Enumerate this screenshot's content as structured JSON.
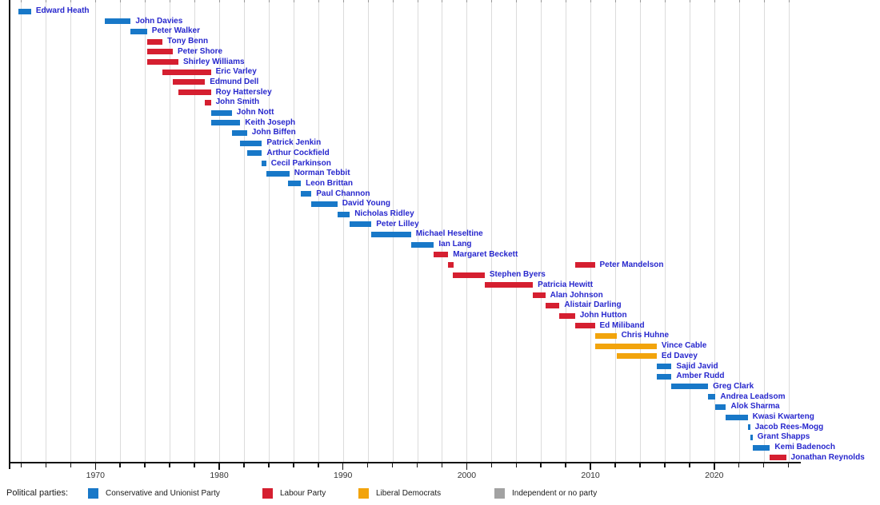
{
  "legend": {
    "title": "Political parties:",
    "items": [
      {
        "party": "con"
      },
      {
        "party": "lab"
      },
      {
        "party": "ld"
      },
      {
        "party": "ind"
      }
    ]
  },
  "parties": {
    "con": {
      "name": "Conservative and Unionist Party",
      "color": "#1878c8"
    },
    "lab": {
      "name": "Labour Party",
      "color": "#d51f30"
    },
    "ld": {
      "name": "Liberal Democrats",
      "color": "#f2a40c"
    },
    "ind": {
      "name": "Independent or no party",
      "color": "#a2a2a2"
    }
  },
  "chart_data": {
    "type": "timeline",
    "title": "",
    "label_color": "#2727cd",
    "x_axis": {
      "range": [
        1963,
        2027
      ],
      "major_ticks": [
        1970,
        1980,
        1990,
        2000,
        2010,
        2020
      ],
      "tick_labels": [
        "1970",
        "1980",
        "1990",
        "2000",
        "2010",
        "2020"
      ],
      "minor_tick_step": 2,
      "gridline_step": 2,
      "grid": true
    },
    "entries": [
      {
        "name": "Edward Heath",
        "party": "con",
        "terms": [
          [
            1963.75,
            1964.8
          ]
        ]
      },
      {
        "name": "John Davies",
        "party": "con",
        "terms": [
          [
            1970.75,
            1972.85
          ]
        ]
      },
      {
        "name": "Peter Walker",
        "party": "con",
        "terms": [
          [
            1972.85,
            1974.17
          ]
        ]
      },
      {
        "name": "Tony Benn",
        "party": "lab",
        "terms": [
          [
            1974.17,
            1975.42
          ]
        ]
      },
      {
        "name": "Peter Shore",
        "party": "lab",
        "terms": [
          [
            1974.17,
            1976.25
          ]
        ]
      },
      {
        "name": "Shirley Williams",
        "party": "lab",
        "terms": [
          [
            1974.17,
            1976.7
          ]
        ]
      },
      {
        "name": "Eric Varley",
        "party": "lab",
        "terms": [
          [
            1975.42,
            1979.33
          ]
        ]
      },
      {
        "name": "Edmund Dell",
        "party": "lab",
        "terms": [
          [
            1976.25,
            1978.85
          ]
        ]
      },
      {
        "name": "Roy Hattersley",
        "party": "lab",
        "terms": [
          [
            1976.7,
            1979.33
          ]
        ]
      },
      {
        "name": "John Smith",
        "party": "lab",
        "terms": [
          [
            1978.85,
            1979.33
          ]
        ]
      },
      {
        "name": "John Nott",
        "party": "con",
        "terms": [
          [
            1979.33,
            1981.02
          ]
        ]
      },
      {
        "name": "Keith Joseph",
        "party": "con",
        "terms": [
          [
            1979.33,
            1981.7
          ]
        ]
      },
      {
        "name": "John Biffen",
        "party": "con",
        "terms": [
          [
            1981.02,
            1982.25
          ]
        ]
      },
      {
        "name": "Patrick Jenkin",
        "party": "con",
        "terms": [
          [
            1981.7,
            1983.45
          ]
        ]
      },
      {
        "name": "Arthur Cockfield",
        "party": "con",
        "terms": [
          [
            1982.25,
            1983.45
          ]
        ]
      },
      {
        "name": "Cecil Parkinson",
        "party": "con",
        "terms": [
          [
            1983.45,
            1983.8
          ]
        ]
      },
      {
        "name": "Norman Tebbit",
        "party": "con",
        "terms": [
          [
            1983.8,
            1985.67
          ]
        ]
      },
      {
        "name": "Leon Brittan",
        "party": "con",
        "terms": [
          [
            1985.55,
            1986.6
          ]
        ]
      },
      {
        "name": "Paul Channon",
        "party": "con",
        "terms": [
          [
            1986.6,
            1987.45
          ]
        ]
      },
      {
        "name": "David Young",
        "party": "con",
        "terms": [
          [
            1987.45,
            1989.55
          ]
        ]
      },
      {
        "name": "Nicholas Ridley",
        "party": "con",
        "terms": [
          [
            1989.55,
            1990.55
          ]
        ]
      },
      {
        "name": "Peter Lilley",
        "party": "con",
        "terms": [
          [
            1990.55,
            1992.3
          ]
        ]
      },
      {
        "name": "Michael Heseltine",
        "party": "con",
        "terms": [
          [
            1992.3,
            1995.5
          ]
        ]
      },
      {
        "name": "Ian Lang",
        "party": "con",
        "terms": [
          [
            1995.5,
            1997.35
          ]
        ]
      },
      {
        "name": "Margaret Beckett",
        "party": "lab",
        "terms": [
          [
            1997.35,
            1998.5
          ]
        ]
      },
      {
        "name": "Peter Mandelson",
        "party": "lab",
        "terms": [
          [
            1998.5,
            1998.95
          ],
          [
            2008.75,
            2010.35
          ]
        ]
      },
      {
        "name": "Stephen Byers",
        "party": "lab",
        "terms": [
          [
            1998.9,
            2001.45
          ]
        ]
      },
      {
        "name": "Patricia Hewitt",
        "party": "lab",
        "terms": [
          [
            2001.45,
            2005.35
          ]
        ]
      },
      {
        "name": "Alan Johnson",
        "party": "lab",
        "terms": [
          [
            2005.35,
            2006.35
          ]
        ]
      },
      {
        "name": "Alistair Darling",
        "party": "lab",
        "terms": [
          [
            2006.35,
            2007.5
          ]
        ]
      },
      {
        "name": "John Hutton",
        "party": "lab",
        "terms": [
          [
            2007.5,
            2008.75
          ]
        ]
      },
      {
        "name": "Ed Miliband",
        "party": "lab",
        "terms": [
          [
            2008.75,
            2010.35
          ]
        ]
      },
      {
        "name": "Chris Huhne",
        "party": "ld",
        "terms": [
          [
            2010.35,
            2012.1
          ]
        ]
      },
      {
        "name": "Vince Cable",
        "party": "ld",
        "terms": [
          [
            2010.35,
            2015.35
          ]
        ]
      },
      {
        "name": "Ed Davey",
        "party": "ld",
        "terms": [
          [
            2012.1,
            2015.35
          ]
        ]
      },
      {
        "name": "Sajid Javid",
        "party": "con",
        "terms": [
          [
            2015.35,
            2016.55
          ]
        ]
      },
      {
        "name": "Amber Rudd",
        "party": "con",
        "terms": [
          [
            2015.35,
            2016.55
          ]
        ]
      },
      {
        "name": "Greg Clark",
        "party": "con",
        "terms": [
          [
            2016.55,
            2019.5
          ]
        ]
      },
      {
        "name": "Andrea Leadsom",
        "party": "con",
        "terms": [
          [
            2019.5,
            2020.1
          ]
        ]
      },
      {
        "name": "Alok Sharma",
        "party": "con",
        "terms": [
          [
            2020.1,
            2020.95
          ]
        ]
      },
      {
        "name": "Kwasi Kwarteng",
        "party": "con",
        "terms": [
          [
            2020.95,
            2022.7
          ]
        ]
      },
      {
        "name": "Jacob Rees-Mogg",
        "party": "con",
        "terms": [
          [
            2022.7,
            2022.9
          ]
        ]
      },
      {
        "name": "Grant Shapps",
        "party": "con",
        "terms": [
          [
            2022.9,
            2023.1
          ]
        ]
      },
      {
        "name": "Kemi Badenoch",
        "party": "con",
        "terms": [
          [
            2023.1,
            2024.5
          ]
        ]
      },
      {
        "name": "Jonathan Reynolds",
        "party": "lab",
        "terms": [
          [
            2024.5,
            2025.8
          ]
        ]
      }
    ]
  }
}
